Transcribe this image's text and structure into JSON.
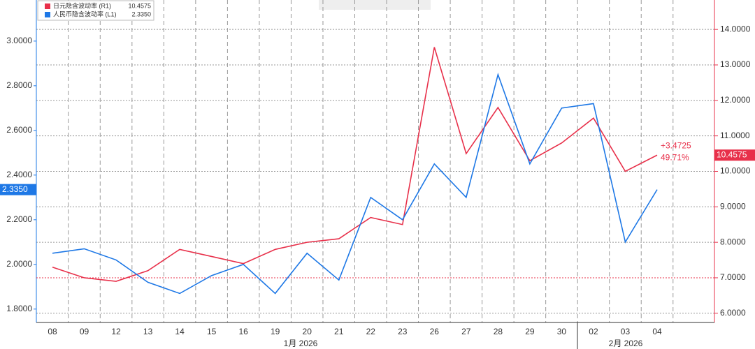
{
  "chart_data": {
    "type": "line",
    "categories": [
      "08",
      "09",
      "12",
      "13",
      "14",
      "15",
      "16",
      "19",
      "20",
      "21",
      "22",
      "23",
      "26",
      "27",
      "28",
      "29",
      "30",
      "02",
      "03",
      "04"
    ],
    "month_labels": [
      "1月 2026",
      "2月 2026"
    ],
    "series": [
      {
        "name": "日元隐含波动率 (R1)",
        "legend_value": "10.4575",
        "color": "#e8304a",
        "axis": "y2",
        "values": [
          7.3,
          7.0,
          6.9,
          7.2,
          7.8,
          7.6,
          7.4,
          7.8,
          8.0,
          8.1,
          8.7,
          8.5,
          13.5,
          10.5,
          11.8,
          10.3,
          10.8,
          11.5,
          10.0,
          10.4575
        ],
        "last_label": "10.4575"
      },
      {
        "name": "人民币隐含波动率 (L1)",
        "legend_value": "2.3350",
        "color": "#1e78e6",
        "axis": "y",
        "values": [
          2.05,
          2.07,
          2.02,
          1.92,
          1.87,
          1.95,
          2.0,
          1.87,
          2.05,
          1.93,
          2.3,
          2.2,
          2.45,
          2.3,
          2.85,
          2.45,
          2.7,
          2.72,
          2.1,
          2.335
        ],
        "last_label": "2.3350"
      }
    ],
    "ylim": [
      1.74,
      3.184
    ],
    "yticks": [
      {
        "value": 1.8,
        "label": "1.8000"
      },
      {
        "value": 2.0,
        "label": "2.0000"
      },
      {
        "value": 2.2,
        "label": "2.2000"
      },
      {
        "value": 2.4,
        "label": "2.4000"
      },
      {
        "value": 2.6,
        "label": "2.6000"
      },
      {
        "value": 2.8,
        "label": "2.8000"
      },
      {
        "value": 3.0,
        "label": "3.0000"
      }
    ],
    "y2lim": [
      5.74,
      14.83
    ],
    "y2ticks": [
      {
        "value": 6,
        "label": "6.0000"
      },
      {
        "value": 7,
        "label": "7.0000"
      },
      {
        "value": 8,
        "label": "8.0000"
      },
      {
        "value": 9,
        "label": "9.0000"
      },
      {
        "value": 10,
        "label": "10.0000"
      },
      {
        "value": 11,
        "label": "11.0000"
      },
      {
        "value": 12,
        "label": "12.0000"
      },
      {
        "value": 13,
        "label": "13.0000"
      },
      {
        "value": 14,
        "label": "14.0000"
      }
    ],
    "reference_line": 7,
    "annotations": [
      "+3.4725",
      "49.71%"
    ],
    "grid": true
  }
}
